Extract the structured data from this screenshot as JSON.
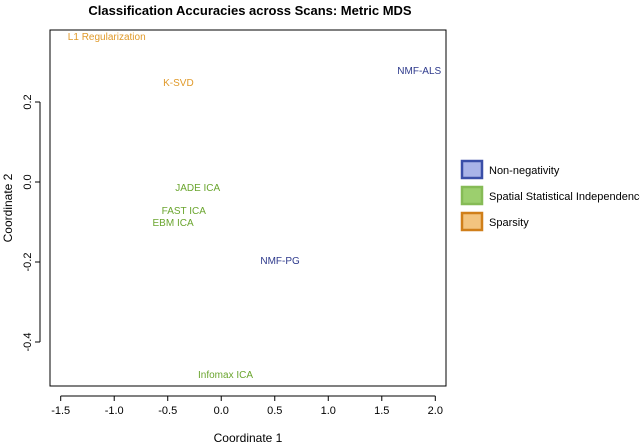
{
  "chart_data": {
    "type": "scatter",
    "title": "Classification Accuracies across Scans: Metric MDS",
    "xlabel": "Coordinate 1",
    "ylabel": "Coordinate 2",
    "xlim": [
      -1.6,
      2.1
    ],
    "ylim": [
      -0.51,
      0.38
    ],
    "xticks": [
      -1.5,
      -1.0,
      -0.5,
      0.0,
      0.5,
      1.0,
      1.5,
      2.0
    ],
    "xtick_labels": [
      "-1.5",
      "-1.0",
      "-0.5",
      "0.0",
      "0.5",
      "1.0",
      "1.5",
      "2.0"
    ],
    "yticks": [
      -0.4,
      -0.2,
      0.0,
      0.2
    ],
    "ytick_labels": [
      "-0.4",
      "-0.2",
      "0.0",
      "0.2"
    ],
    "grid": false,
    "legend_position": "right",
    "series": [
      {
        "name": "Non-negativity",
        "color": "#2e3a8c",
        "legend_fill": "#a9b4e8",
        "legend_border": "#3a4fa8",
        "points": [
          {
            "label": "NMF-ALS",
            "x": 1.85,
            "y": 0.28
          },
          {
            "label": "NMF-PG",
            "x": 0.55,
            "y": -0.195
          }
        ]
      },
      {
        "name": "Spatial Statistical Independence",
        "color": "#6aa52e",
        "legend_fill": "#9ccf6e",
        "legend_border": "#86bb56",
        "points": [
          {
            "label": "JADE ICA",
            "x": -0.22,
            "y": -0.012
          },
          {
            "label": "FAST ICA",
            "x": -0.35,
            "y": -0.07
          },
          {
            "label": "EBM ICA",
            "x": -0.45,
            "y": -0.1
          },
          {
            "label": "Infomax ICA",
            "x": 0.04,
            "y": -0.48
          }
        ]
      },
      {
        "name": "Sparsity",
        "color": "#e09a2a",
        "legend_fill": "#f3c47f",
        "legend_border": "#d07f1a",
        "points": [
          {
            "label": "L1 Regularization",
            "x": -1.07,
            "y": 0.365
          },
          {
            "label": "K-SVD",
            "x": -0.4,
            "y": 0.25
          }
        ]
      }
    ]
  }
}
